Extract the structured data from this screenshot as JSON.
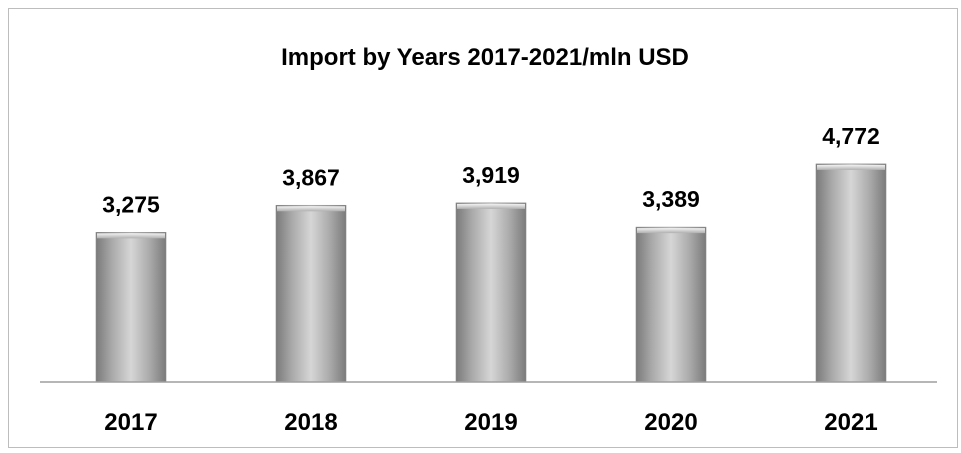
{
  "chart_data": {
    "type": "bar",
    "title": "Import by Years 2017-2021/mln USD",
    "xlabel": "",
    "ylabel": "",
    "categories": [
      "2017",
      "2018",
      "2019",
      "2020",
      "2021"
    ],
    "values": [
      3275,
      3867,
      3919,
      3389,
      4772
    ],
    "value_labels": [
      "3,275",
      "3,867",
      "3,919",
      "3,389",
      "4,772"
    ],
    "ylim": [
      0,
      5500
    ],
    "grid": false,
    "legend": "none",
    "bar_color": "#a6a6a6"
  }
}
